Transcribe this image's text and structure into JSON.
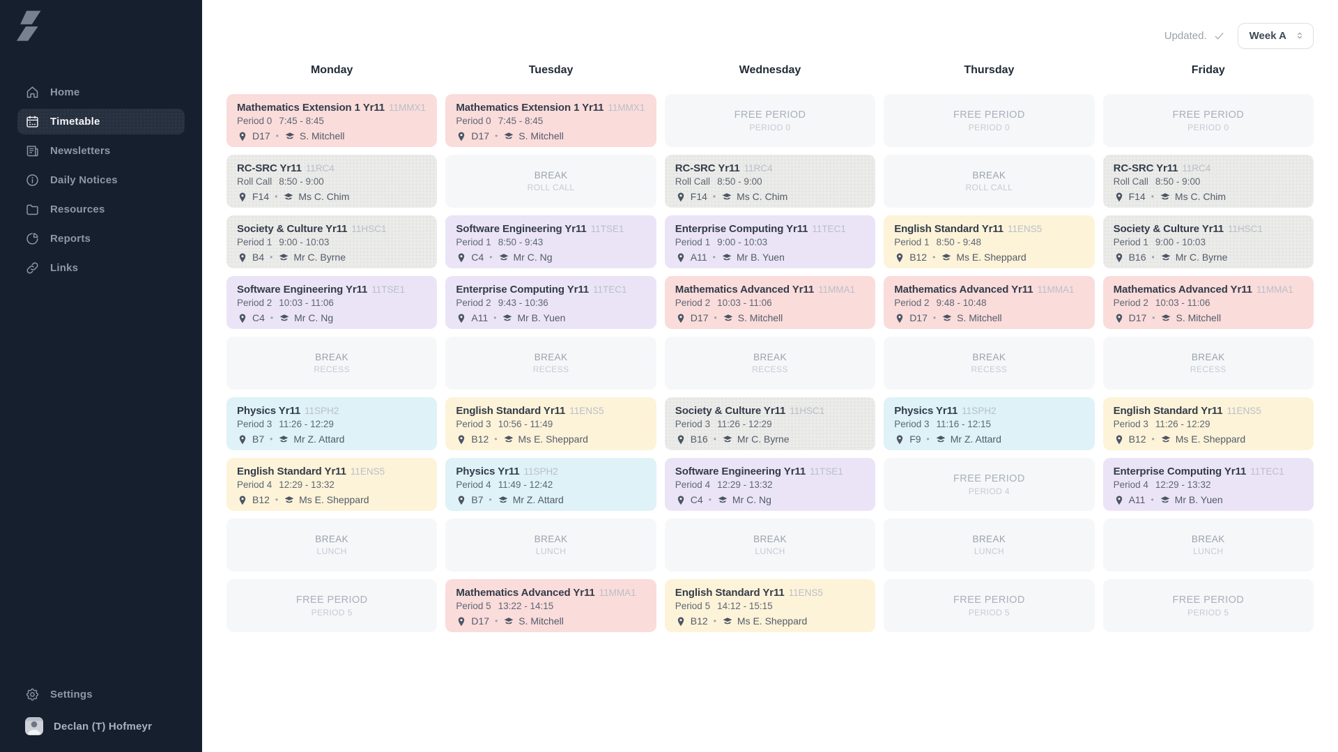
{
  "sidebar": {
    "items": [
      {
        "label": "Home",
        "icon": "home-icon",
        "active": false
      },
      {
        "label": "Timetable",
        "icon": "timetable-icon",
        "active": true
      },
      {
        "label": "Newsletters",
        "icon": "newsletter-icon",
        "active": false
      },
      {
        "label": "Daily Notices",
        "icon": "info-circle-icon",
        "active": false
      },
      {
        "label": "Resources",
        "icon": "folder-icon",
        "active": false
      },
      {
        "label": "Reports",
        "icon": "pie-chart-icon",
        "active": false
      },
      {
        "label": "Links",
        "icon": "link-icon",
        "active": false
      }
    ],
    "settings_label": "Settings",
    "user_name": "Declan (T) Hofmeyr"
  },
  "header": {
    "updated_label": "Updated.",
    "week_label": "Week A"
  },
  "palette": {
    "pink": "#fadcdb",
    "purple": "#ebe4f7",
    "cyan": "#def2f8",
    "cream": "#fdf3d8",
    "gray": "#ebebe9"
  },
  "timetable": {
    "days": [
      {
        "name": "Monday",
        "cells": [
          {
            "type": "class",
            "title": "Mathematics Extension 1 Yr11",
            "code": "11MMX1",
            "period": "Period 0",
            "time": "7:45 - 8:45",
            "room": "D17",
            "teacher": "S. Mitchell",
            "color": "pink"
          },
          {
            "type": "class",
            "title": "RC-SRC Yr11",
            "code": "11RC4",
            "period": "Roll Call",
            "time": "8:50 - 9:00",
            "room": "F14",
            "teacher": "Ms C. Chim",
            "color": "gray"
          },
          {
            "type": "class",
            "title": "Society & Culture Yr11",
            "code": "11HSC1",
            "period": "Period 1",
            "time": "9:00 - 10:03",
            "room": "B4",
            "teacher": "Mr C. Byrne",
            "color": "gray"
          },
          {
            "type": "class",
            "title": "Software Engineering Yr11",
            "code": "11TSE1",
            "period": "Period 2",
            "time": "10:03 - 11:06",
            "room": "C4",
            "teacher": "Mr C. Ng",
            "color": "purple"
          },
          {
            "type": "break",
            "title": "BREAK",
            "subtitle": "RECESS"
          },
          {
            "type": "class",
            "title": "Physics Yr11",
            "code": "11SPH2",
            "period": "Period 3",
            "time": "11:26 - 12:29",
            "room": "B7",
            "teacher": "Mr Z. Attard",
            "color": "cyan"
          },
          {
            "type": "class",
            "title": "English Standard Yr11",
            "code": "11ENS5",
            "period": "Period 4",
            "time": "12:29 - 13:32",
            "room": "B12",
            "teacher": "Ms E. Sheppard",
            "color": "cream"
          },
          {
            "type": "break",
            "title": "BREAK",
            "subtitle": "LUNCH"
          },
          {
            "type": "free",
            "title": "FREE PERIOD",
            "subtitle": "PERIOD 5"
          }
        ]
      },
      {
        "name": "Tuesday",
        "cells": [
          {
            "type": "class",
            "title": "Mathematics Extension 1 Yr11",
            "code": "11MMX1",
            "period": "Period 0",
            "time": "7:45 - 8:45",
            "room": "D17",
            "teacher": "S. Mitchell",
            "color": "pink"
          },
          {
            "type": "break",
            "title": "BREAK",
            "subtitle": "ROLL CALL"
          },
          {
            "type": "class",
            "title": "Software Engineering Yr11",
            "code": "11TSE1",
            "period": "Period 1",
            "time": "8:50 - 9:43",
            "room": "C4",
            "teacher": "Mr C. Ng",
            "color": "purple"
          },
          {
            "type": "class",
            "title": "Enterprise Computing Yr11",
            "code": "11TEC1",
            "period": "Period 2",
            "time": "9:43 - 10:36",
            "room": "A11",
            "teacher": "Mr B. Yuen",
            "color": "purple"
          },
          {
            "type": "break",
            "title": "BREAK",
            "subtitle": "RECESS"
          },
          {
            "type": "class",
            "title": "English Standard Yr11",
            "code": "11ENS5",
            "period": "Period 3",
            "time": "10:56 - 11:49",
            "room": "B12",
            "teacher": "Ms E. Sheppard",
            "color": "cream"
          },
          {
            "type": "class",
            "title": "Physics Yr11",
            "code": "11SPH2",
            "period": "Period 4",
            "time": "11:49 - 12:42",
            "room": "B7",
            "teacher": "Mr Z. Attard",
            "color": "cyan"
          },
          {
            "type": "break",
            "title": "BREAK",
            "subtitle": "LUNCH"
          },
          {
            "type": "class",
            "title": "Mathematics Advanced Yr11",
            "code": "11MMA1",
            "period": "Period 5",
            "time": "13:22 - 14:15",
            "room": "D17",
            "teacher": "S. Mitchell",
            "color": "pink"
          }
        ]
      },
      {
        "name": "Wednesday",
        "cells": [
          {
            "type": "free",
            "title": "FREE PERIOD",
            "subtitle": "PERIOD 0"
          },
          {
            "type": "class",
            "title": "RC-SRC Yr11",
            "code": "11RC4",
            "period": "Roll Call",
            "time": "8:50 - 9:00",
            "room": "F14",
            "teacher": "Ms C. Chim",
            "color": "gray"
          },
          {
            "type": "class",
            "title": "Enterprise Computing Yr11",
            "code": "11TEC1",
            "period": "Period 1",
            "time": "9:00 - 10:03",
            "room": "A11",
            "teacher": "Mr B. Yuen",
            "color": "purple"
          },
          {
            "type": "class",
            "title": "Mathematics Advanced Yr11",
            "code": "11MMA1",
            "period": "Period 2",
            "time": "10:03 - 11:06",
            "room": "D17",
            "teacher": "S. Mitchell",
            "color": "pink"
          },
          {
            "type": "break",
            "title": "BREAK",
            "subtitle": "RECESS"
          },
          {
            "type": "class",
            "title": "Society & Culture Yr11",
            "code": "11HSC1",
            "period": "Period 3",
            "time": "11:26 - 12:29",
            "room": "B16",
            "teacher": "Mr C. Byrne",
            "color": "gray"
          },
          {
            "type": "class",
            "title": "Software Engineering Yr11",
            "code": "11TSE1",
            "period": "Period 4",
            "time": "12:29 - 13:32",
            "room": "C4",
            "teacher": "Mr C. Ng",
            "color": "purple"
          },
          {
            "type": "break",
            "title": "BREAK",
            "subtitle": "LUNCH"
          },
          {
            "type": "class",
            "title": "English Standard Yr11",
            "code": "11ENS5",
            "period": "Period 5",
            "time": "14:12 - 15:15",
            "room": "B12",
            "teacher": "Ms E. Sheppard",
            "color": "cream"
          }
        ]
      },
      {
        "name": "Thursday",
        "cells": [
          {
            "type": "free",
            "title": "FREE PERIOD",
            "subtitle": "PERIOD 0"
          },
          {
            "type": "break",
            "title": "BREAK",
            "subtitle": "ROLL CALL"
          },
          {
            "type": "class",
            "title": "English Standard Yr11",
            "code": "11ENS5",
            "period": "Period 1",
            "time": "8:50 - 9:48",
            "room": "B12",
            "teacher": "Ms E. Sheppard",
            "color": "cream"
          },
          {
            "type": "class",
            "title": "Mathematics Advanced Yr11",
            "code": "11MMA1",
            "period": "Period 2",
            "time": "9:48 - 10:48",
            "room": "D17",
            "teacher": "S. Mitchell",
            "color": "pink"
          },
          {
            "type": "break",
            "title": "BREAK",
            "subtitle": "RECESS"
          },
          {
            "type": "class",
            "title": "Physics Yr11",
            "code": "11SPH2",
            "period": "Period 3",
            "time": "11:16 - 12:15",
            "room": "F9",
            "teacher": "Mr Z. Attard",
            "color": "cyan"
          },
          {
            "type": "free",
            "title": "FREE PERIOD",
            "subtitle": "PERIOD 4"
          },
          {
            "type": "break",
            "title": "BREAK",
            "subtitle": "LUNCH"
          },
          {
            "type": "free",
            "title": "FREE PERIOD",
            "subtitle": "PERIOD 5"
          }
        ]
      },
      {
        "name": "Friday",
        "cells": [
          {
            "type": "free",
            "title": "FREE PERIOD",
            "subtitle": "PERIOD 0"
          },
          {
            "type": "class",
            "title": "RC-SRC Yr11",
            "code": "11RC4",
            "period": "Roll Call",
            "time": "8:50 - 9:00",
            "room": "F14",
            "teacher": "Ms C. Chim",
            "color": "gray"
          },
          {
            "type": "class",
            "title": "Society & Culture Yr11",
            "code": "11HSC1",
            "period": "Period 1",
            "time": "9:00 - 10:03",
            "room": "B16",
            "teacher": "Mr C. Byrne",
            "color": "gray"
          },
          {
            "type": "class",
            "title": "Mathematics Advanced Yr11",
            "code": "11MMA1",
            "period": "Period 2",
            "time": "10:03 - 11:06",
            "room": "D17",
            "teacher": "S. Mitchell",
            "color": "pink"
          },
          {
            "type": "break",
            "title": "BREAK",
            "subtitle": "RECESS"
          },
          {
            "type": "class",
            "title": "English Standard Yr11",
            "code": "11ENS5",
            "period": "Period 3",
            "time": "11:26 - 12:29",
            "room": "B12",
            "teacher": "Ms E. Sheppard",
            "color": "cream"
          },
          {
            "type": "class",
            "title": "Enterprise Computing Yr11",
            "code": "11TEC1",
            "period": "Period 4",
            "time": "12:29 - 13:32",
            "room": "A11",
            "teacher": "Mr B. Yuen",
            "color": "purple"
          },
          {
            "type": "break",
            "title": "BREAK",
            "subtitle": "LUNCH"
          },
          {
            "type": "free",
            "title": "FREE PERIOD",
            "subtitle": "PERIOD 5"
          }
        ]
      }
    ]
  }
}
